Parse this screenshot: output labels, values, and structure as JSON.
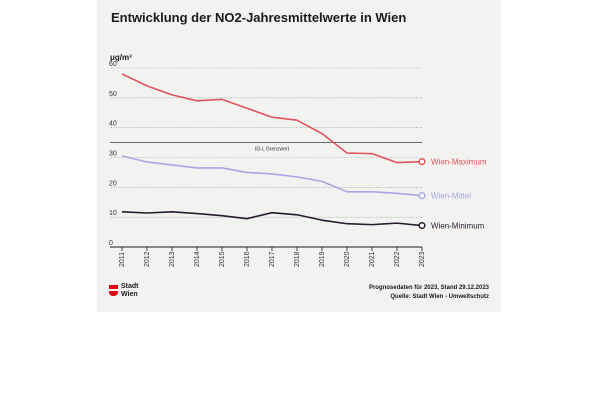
{
  "title": "Entwicklung der NO2-Jahresmittelwerte in Wien",
  "unit": "μg/m³",
  "footer": {
    "forecast_note": "Prognosedaten für 2023, Stand 29.12.2023",
    "source": "Quelle: Stadt Wien - Umweltschutz"
  },
  "logo": {
    "line1": "Stadt",
    "line2": "Wien"
  },
  "chart_data": {
    "type": "line",
    "title": "Entwicklung der NO2-Jahresmittelwerte in Wien",
    "ylabel": "μg/m³",
    "xlabel": "",
    "ylim": [
      0,
      60
    ],
    "yticks": [
      0,
      10,
      20,
      30,
      40,
      50,
      60
    ],
    "x": [
      2011,
      2012,
      2013,
      2014,
      2015,
      2016,
      2017,
      2018,
      2019,
      2020,
      2021,
      2022,
      2023
    ],
    "grid": true,
    "reference_line": {
      "label": "IG-L Grenzwert",
      "value": 35
    },
    "series": [
      {
        "name": "Wien-Maximum",
        "color": "#e0545d",
        "values": [
          58,
          54,
          51,
          49,
          49.5,
          46.5,
          43.5,
          42.5,
          38,
          31.5,
          31.3,
          28.3,
          28.6
        ]
      },
      {
        "name": "Wien-Mittel",
        "color": "#a7a7e6",
        "values": [
          30.5,
          28.5,
          27.5,
          26.5,
          26.5,
          25,
          24.5,
          23.5,
          22,
          18.5,
          18.5,
          18,
          17.2
        ]
      },
      {
        "name": "Wien-Minimum",
        "color": "#2a1a2e",
        "values": [
          11.8,
          11.4,
          11.8,
          11.2,
          10.5,
          9.5,
          11.5,
          10.8,
          9,
          7.8,
          7.5,
          8,
          7.2
        ]
      }
    ]
  }
}
